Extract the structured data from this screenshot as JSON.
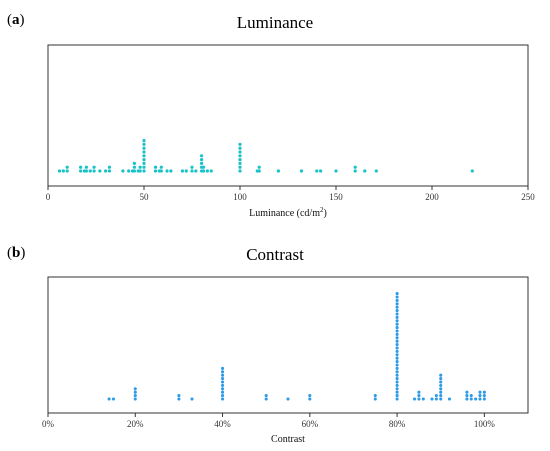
{
  "chart_data": [
    {
      "type": "scatter",
      "panel_open": "(",
      "panel_letter": "a",
      "panel_close": ")",
      "title": "Luminance",
      "xlabel": "Luminance (cd/m",
      "xlabel_sup": "2",
      "xlabel_tail": ")",
      "ylabel": "",
      "xlim": [
        0,
        250
      ],
      "xticks": [
        0,
        50,
        100,
        150,
        200,
        250
      ],
      "xtick_labels": [
        "0",
        "50",
        "100",
        "150",
        "200",
        "250"
      ],
      "grid": false,
      "legend": "none",
      "color": "#17c2c9",
      "style": "dot-stacks",
      "stacks": [
        {
          "x": 6,
          "count": 1
        },
        {
          "x": 8,
          "count": 1
        },
        {
          "x": 10,
          "count": 2
        },
        {
          "x": 17,
          "count": 2
        },
        {
          "x": 19,
          "count": 1
        },
        {
          "x": 20,
          "count": 2
        },
        {
          "x": 22,
          "count": 1
        },
        {
          "x": 24,
          "count": 2
        },
        {
          "x": 27,
          "count": 1
        },
        {
          "x": 30,
          "count": 1
        },
        {
          "x": 32,
          "count": 2
        },
        {
          "x": 39,
          "count": 1
        },
        {
          "x": 42,
          "count": 1
        },
        {
          "x": 44,
          "count": 1
        },
        {
          "x": 45,
          "count": 3
        },
        {
          "x": 47,
          "count": 1
        },
        {
          "x": 48,
          "count": 2
        },
        {
          "x": 50,
          "count": 9
        },
        {
          "x": 56,
          "count": 2
        },
        {
          "x": 58,
          "count": 1
        },
        {
          "x": 59,
          "count": 2
        },
        {
          "x": 62,
          "count": 1
        },
        {
          "x": 64,
          "count": 1
        },
        {
          "x": 70,
          "count": 1
        },
        {
          "x": 72,
          "count": 1
        },
        {
          "x": 75,
          "count": 2
        },
        {
          "x": 77,
          "count": 1
        },
        {
          "x": 80,
          "count": 5
        },
        {
          "x": 81,
          "count": 2
        },
        {
          "x": 83,
          "count": 1
        },
        {
          "x": 85,
          "count": 1
        },
        {
          "x": 100,
          "count": 8
        },
        {
          "x": 109,
          "count": 1
        },
        {
          "x": 110,
          "count": 2
        },
        {
          "x": 120,
          "count": 1
        },
        {
          "x": 132,
          "count": 1
        },
        {
          "x": 140,
          "count": 1
        },
        {
          "x": 142,
          "count": 1
        },
        {
          "x": 150,
          "count": 1
        },
        {
          "x": 160,
          "count": 2
        },
        {
          "x": 165,
          "count": 1
        },
        {
          "x": 171,
          "count": 1
        },
        {
          "x": 221,
          "count": 1
        }
      ]
    },
    {
      "type": "scatter",
      "panel_open": "(",
      "panel_letter": "b",
      "panel_close": ")",
      "title": "Contrast",
      "xlabel": "Contrast",
      "ylabel": "",
      "xlim": [
        0,
        110
      ],
      "xticks": [
        0,
        20,
        40,
        60,
        80,
        100
      ],
      "xtick_labels": [
        "0%",
        "20%",
        "40%",
        "60%",
        "80%",
        "100%"
      ],
      "grid": false,
      "legend": "none",
      "color": "#2e9be6",
      "style": "dot-stacks",
      "stacks": [
        {
          "x": 14,
          "count": 1
        },
        {
          "x": 15,
          "count": 1
        },
        {
          "x": 20,
          "count": 4
        },
        {
          "x": 30,
          "count": 2
        },
        {
          "x": 33,
          "count": 1
        },
        {
          "x": 40,
          "count": 10
        },
        {
          "x": 50,
          "count": 2
        },
        {
          "x": 55,
          "count": 1
        },
        {
          "x": 60,
          "count": 2
        },
        {
          "x": 75,
          "count": 2
        },
        {
          "x": 80,
          "count": 32
        },
        {
          "x": 84,
          "count": 1
        },
        {
          "x": 85,
          "count": 3
        },
        {
          "x": 86,
          "count": 1
        },
        {
          "x": 88,
          "count": 1
        },
        {
          "x": 89,
          "count": 2
        },
        {
          "x": 90,
          "count": 8
        },
        {
          "x": 92,
          "count": 1
        },
        {
          "x": 96,
          "count": 3
        },
        {
          "x": 97,
          "count": 2
        },
        {
          "x": 98,
          "count": 1
        },
        {
          "x": 99,
          "count": 3
        },
        {
          "x": 100,
          "count": 3
        }
      ]
    }
  ]
}
